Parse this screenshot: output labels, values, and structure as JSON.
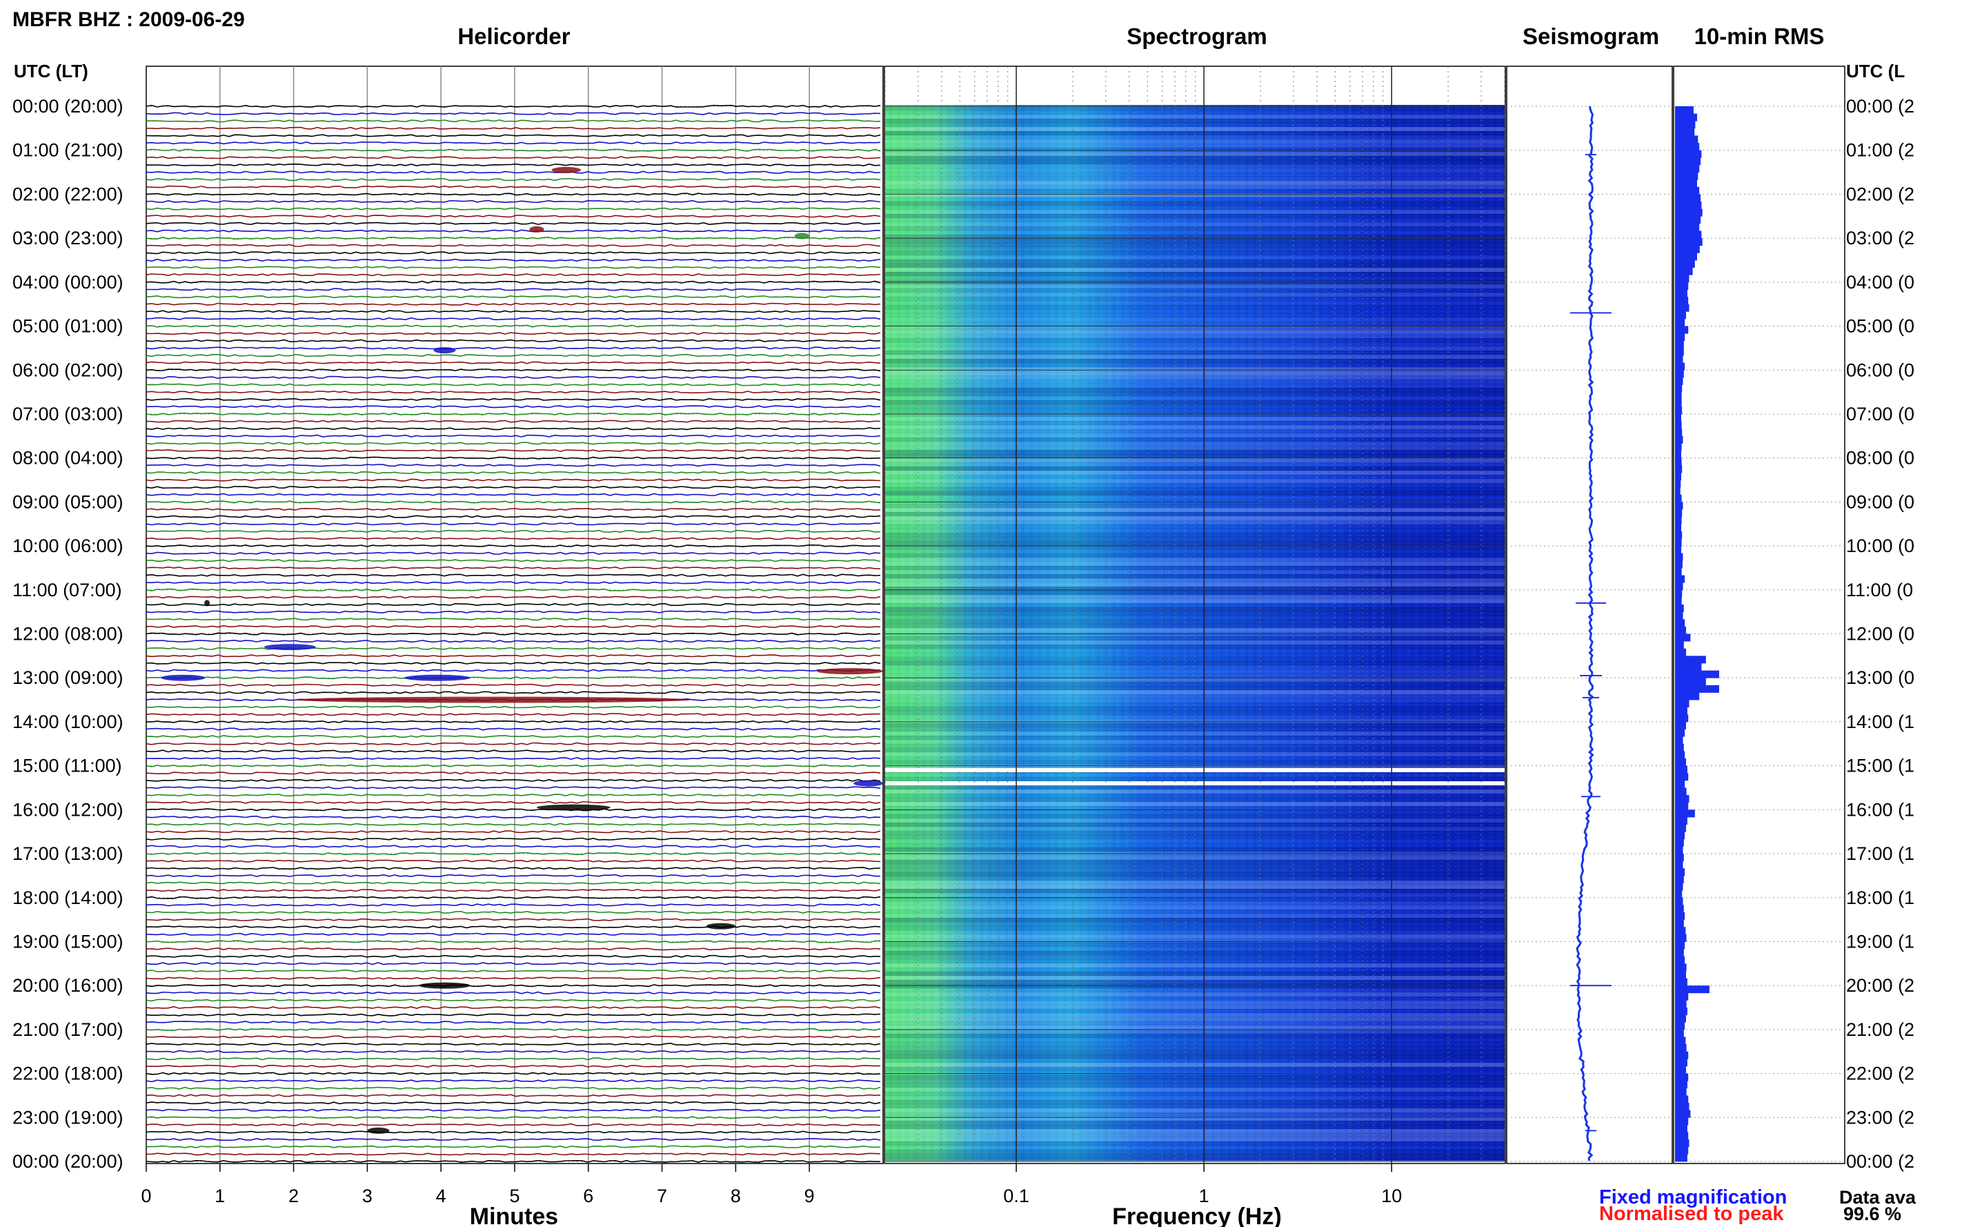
{
  "title": "MBFR BHZ : 2009-06-29",
  "chart_data": {
    "type": "heatmap",
    "station_title": "MBFR BHZ : 2009-06-29",
    "panels": [
      {
        "id": "helicorder",
        "title": "Helicorder",
        "xlabel": "Minutes",
        "xticks": [
          0,
          1,
          2,
          3,
          4,
          5,
          6,
          7,
          8,
          9
        ],
        "xlim": [
          0,
          10
        ],
        "trace_colors": [
          "#000000",
          "#1010c8",
          "#228b22",
          "#8b1010"
        ]
      },
      {
        "id": "spectrogram",
        "title": "Spectrogram",
        "xlabel": "Frequency (Hz)",
        "xscale": "log",
        "xlim": [
          0.02,
          40
        ],
        "xticks": [
          {
            "value": 0.1,
            "label": "0.1"
          },
          {
            "value": 1,
            "label": "1"
          },
          {
            "value": 10,
            "label": "10"
          }
        ]
      },
      {
        "id": "seismogram",
        "title": "Seismogram"
      },
      {
        "id": "rms",
        "title": "10-min RMS"
      }
    ],
    "ylabel_left": "UTC (LT)",
    "ylabel_right": "UTC (L",
    "hour_labels_left": [
      "00:00 (20:00)",
      "01:00 (21:00)",
      "02:00 (22:00)",
      "03:00 (23:00)",
      "04:00 (00:00)",
      "05:00 (01:00)",
      "06:00 (02:00)",
      "07:00 (03:00)",
      "08:00 (04:00)",
      "09:00 (05:00)",
      "10:00 (06:00)",
      "11:00 (07:00)",
      "12:00 (08:00)",
      "13:00 (09:00)",
      "14:00 (10:00)",
      "15:00 (11:00)",
      "16:00 (12:00)",
      "17:00 (13:00)",
      "18:00 (14:00)",
      "19:00 (15:00)",
      "20:00 (16:00)",
      "21:00 (17:00)",
      "22:00 (18:00)",
      "23:00 (19:00)",
      "00:00 (20:00)"
    ],
    "hour_labels_right": [
      "00:00 (2",
      "01:00 (2",
      "02:00 (2",
      "03:00 (2",
      "04:00 (0",
      "05:00 (0",
      "06:00 (0",
      "07:00 (0",
      "08:00 (0",
      "09:00 (0",
      "10:00 (0",
      "11:00 (0",
      "12:00 (0",
      "13:00 (0",
      "14:00 (1",
      "15:00 (1",
      "16:00 (1",
      "17:00 (1",
      "18:00 (1",
      "19:00 (1",
      "20:00 (2",
      "21:00 (2",
      "22:00 (2",
      "23:00 (2",
      "00:00 (2"
    ],
    "gaps_hours": [
      15.1,
      15.4
    ],
    "rms_relative": [
      0.42,
      0.5,
      0.46,
      0.44,
      0.52,
      0.55,
      0.6,
      0.58,
      0.55,
      0.52,
      0.5,
      0.55,
      0.58,
      0.6,
      0.62,
      0.58,
      0.55,
      0.6,
      0.62,
      0.56,
      0.5,
      0.45,
      0.4,
      0.32,
      0.3,
      0.28,
      0.3,
      0.32,
      0.25,
      0.22,
      0.3,
      0.22,
      0.2,
      0.2,
      0.18,
      0.22,
      0.2,
      0.18,
      0.16,
      0.15,
      0.15,
      0.16,
      0.14,
      0.15,
      0.16,
      0.18,
      0.15,
      0.14,
      0.15,
      0.16,
      0.14,
      0.13,
      0.12,
      0.15,
      0.18,
      0.16,
      0.15,
      0.14,
      0.16,
      0.15,
      0.14,
      0.18,
      0.17,
      0.15,
      0.22,
      0.18,
      0.16,
      0.15,
      0.2,
      0.18,
      0.22,
      0.25,
      0.35,
      0.2,
      0.25,
      0.7,
      0.6,
      1.0,
      0.7,
      1.0,
      0.55,
      0.32,
      0.28,
      0.3,
      0.25,
      0.22,
      0.18,
      0.2,
      0.22,
      0.25,
      0.28,
      0.3,
      0.22,
      0.26,
      0.32,
      0.3,
      0.45,
      0.28,
      0.25,
      0.22,
      0.2,
      0.18,
      0.2,
      0.18,
      0.22,
      0.2,
      0.18,
      0.16,
      0.18,
      0.2,
      0.22,
      0.2,
      0.24,
      0.26,
      0.22,
      0.2,
      0.22,
      0.26,
      0.25,
      0.28,
      0.78,
      0.3,
      0.26,
      0.28,
      0.25,
      0.22,
      0.2,
      0.24,
      0.26,
      0.3,
      0.28,
      0.25,
      0.3,
      0.28,
      0.26,
      0.3,
      0.32,
      0.35,
      0.3,
      0.28,
      0.3,
      0.32,
      0.3,
      0.28
    ],
    "legend": [
      {
        "label": "Fixed magnification",
        "color": "#1515ff"
      },
      {
        "label": "Normalised to peak",
        "color": "#ff1a1a"
      }
    ],
    "availability_label": "Data ava",
    "availability_value": "99.6 %"
  }
}
